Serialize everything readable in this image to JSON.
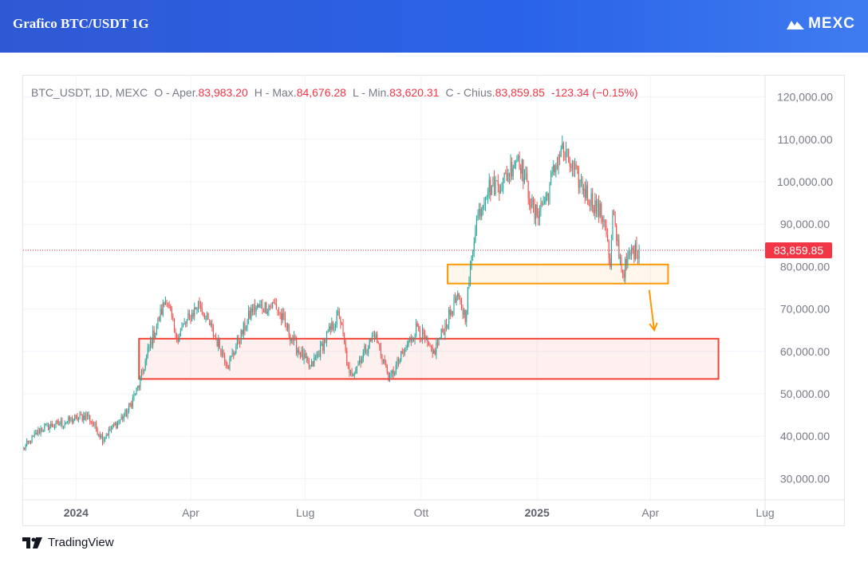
{
  "header": {
    "title": "Grafico BTC/USDT 1G",
    "brand": "MEXC"
  },
  "legend": {
    "symbol": "BTC_USDT, 1D, MEXC",
    "open_label": "O - Aper.",
    "open": "83,983.20",
    "high_label": "H - Max.",
    "high": "84,676.28",
    "low_label": "L - Min.",
    "low": "83,620.31",
    "close_label": "C - Chius.",
    "close": "83,859.85",
    "change": "-123.34 (−0.15%)"
  },
  "price_tag": "83,859.85",
  "footer": {
    "brand": "TradingView"
  },
  "colors": {
    "up": "#26a69a",
    "down": "#ef5350",
    "support_zone": "#f44336",
    "near_zone": "#ff9800",
    "header": "#2a5fe0"
  },
  "chart_data": {
    "type": "candlestick",
    "symbol": "BTC_USDT",
    "interval": "1D",
    "y_ticks": [
      "30,000.00",
      "40,000.00",
      "50,000.00",
      "60,000.00",
      "70,000.00",
      "80,000.00",
      "90,000.00",
      "100,000.00",
      "110,000.00",
      "120,000.00"
    ],
    "ylim": [
      25000,
      125000
    ],
    "x_ticks": [
      {
        "label": "2024",
        "date": "2024-01-01",
        "bold": true
      },
      {
        "label": "Apr",
        "date": "2024-04-01"
      },
      {
        "label": "Lug",
        "date": "2024-07-01"
      },
      {
        "label": "Ott",
        "date": "2024-10-01"
      },
      {
        "label": "2025",
        "date": "2025-01-01",
        "bold": true
      },
      {
        "label": "Apr",
        "date": "2025-04-01"
      },
      {
        "label": "Lug",
        "date": "2025-07-01"
      }
    ],
    "x_range": [
      "2023-11-20",
      "2025-07-01"
    ],
    "last_price": 83859.85,
    "price_path": [
      [
        "2023-11-20",
        37000
      ],
      [
        "2023-12-05",
        42000
      ],
      [
        "2023-12-20",
        43000
      ],
      [
        "2024-01-10",
        45000
      ],
      [
        "2024-01-22",
        39500
      ],
      [
        "2024-02-10",
        45500
      ],
      [
        "2024-02-20",
        52000
      ],
      [
        "2024-02-28",
        61000
      ],
      [
        "2024-03-13",
        73000
      ],
      [
        "2024-03-20",
        63000
      ],
      [
        "2024-04-08",
        71500
      ],
      [
        "2024-04-20",
        63500
      ],
      [
        "2024-05-01",
        57000
      ],
      [
        "2024-05-20",
        70000
      ],
      [
        "2024-06-07",
        71000
      ],
      [
        "2024-06-25",
        60500
      ],
      [
        "2024-07-05",
        56000
      ],
      [
        "2024-07-28",
        69000
      ],
      [
        "2024-08-05",
        54000
      ],
      [
        "2024-08-25",
        64000
      ],
      [
        "2024-09-06",
        53500
      ],
      [
        "2024-09-28",
        66000
      ],
      [
        "2024-10-10",
        59000
      ],
      [
        "2024-10-29",
        72500
      ],
      [
        "2024-11-05",
        68500
      ],
      [
        "2024-11-13",
        90000
      ],
      [
        "2024-11-22",
        98500
      ],
      [
        "2024-12-05",
        100000
      ],
      [
        "2024-12-17",
        106500
      ],
      [
        "2024-12-30",
        92000
      ],
      [
        "2025-01-08",
        96000
      ],
      [
        "2025-01-20",
        108000
      ],
      [
        "2025-01-31",
        102000
      ],
      [
        "2025-02-10",
        97000
      ],
      [
        "2025-02-24",
        91000
      ],
      [
        "2025-02-28",
        79000
      ],
      [
        "2025-03-02",
        92000
      ],
      [
        "2025-03-10",
        78500
      ],
      [
        "2025-03-17",
        83500
      ],
      [
        "2025-03-23",
        84000
      ]
    ],
    "zones": [
      {
        "name": "",
        "from": "2024-02-20",
        "to": "2025-05-25",
        "low": 53500,
        "high": 63000,
        "color": "#f44336"
      },
      {
        "name": "",
        "from": "2024-10-22",
        "to": "2025-04-15",
        "low": 76000,
        "high": 80500,
        "color": "#ff9800"
      }
    ],
    "arrow": {
      "from_date": "2025-03-31",
      "from_price": 74500,
      "to_date": "2025-04-04",
      "to_price": 65000
    },
    "grid": true,
    "legend_position": "top-left"
  }
}
